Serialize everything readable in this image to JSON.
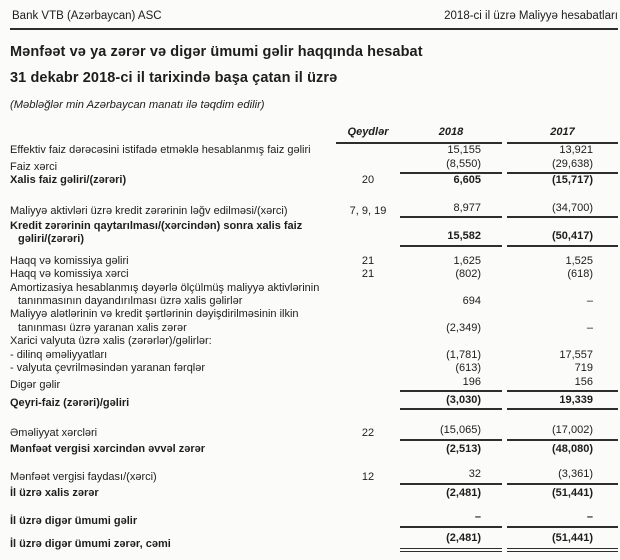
{
  "colors": {
    "ink": "#1d1d1d",
    "rule": "#2e2e2e",
    "paper": "#fbfbfa"
  },
  "header": {
    "company": "Bank VTB (Azərbaycan) ASC",
    "report": "2018-ci il üzrə Maliyyə hesabatları"
  },
  "title": {
    "line1": "Mənfəət və ya zərər və digər ümumi gəlir haqqında hesabat",
    "line2": "31 dekabr 2018-ci il tarixində başa çatan il üzrə",
    "units_note": "(Məbləğlər min Azərbaycan manatı ilə təqdim edilir)"
  },
  "table": {
    "columns": {
      "notes": "Qeydlər",
      "y2018": "2018",
      "y2017": "2017"
    },
    "rows": [
      {
        "label": [
          "Effektiv faiz dərəcəsini istifadə etməklə hesablanmış faiz gəliri"
        ],
        "note": "",
        "v2018": "15,155",
        "v2017": "13,921"
      },
      {
        "label": [
          "Faiz xərci"
        ],
        "note": "",
        "v2018": "(8,550)",
        "v2017": "(29,638)",
        "rule": "single"
      },
      {
        "label": [
          "Xalis faiz gəliri/(zərəri)"
        ],
        "note": "20",
        "v2018": "6,605",
        "v2017": "(15,717)",
        "bold": true
      },
      {
        "spacer": 14
      },
      {
        "label": [
          "Maliyyə aktivləri üzrə kredit zərərinin ləğv edilməsi/(xərci)"
        ],
        "note": "7, 9, 19",
        "v2018": "8,977",
        "v2017": "(34,700)",
        "rule": "single"
      },
      {
        "label": [
          "Kredit zərərinin qaytarılması/(xərcindən) sonra xalis faiz",
          "gəliri/(zərəri)"
        ],
        "note": "",
        "v2018": "15,582",
        "v2017": "(50,417)",
        "bold": true,
        "rule": "single",
        "mt": 2
      },
      {
        "spacer": 8
      },
      {
        "label": [
          "Haqq və komissiya gəliri"
        ],
        "note": "21",
        "v2018": "1,625",
        "v2017": "1,525"
      },
      {
        "label": [
          "Haqq və komissiya xərci"
        ],
        "note": "21",
        "v2018": "(802)",
        "v2017": "(618)"
      },
      {
        "label": [
          "Amortizasiya hesablanmış dəyərlə ölçülmüş maliyyə aktivlərinin",
          "tanınmasının dayandırılması üzrə xalis gəlirlər"
        ],
        "note": "",
        "v2018": "694",
        "v2017": "–"
      },
      {
        "label": [
          "Maliyyə alətlərinin və kredit şərtlərinin dəyişdirilməsinin ilkin",
          "tanınması üzrə yaranan xalis zərər"
        ],
        "note": "",
        "v2018": "(2,349)",
        "v2017": "–"
      },
      {
        "label": [
          "Xarici valyuta üzrə xalis (zərərlər)/gəlirlər:"
        ],
        "note": "",
        "v2018": "",
        "v2017": ""
      },
      {
        "label": [
          "- dilinq əməliyyatları"
        ],
        "note": "",
        "v2018": "(1,781)",
        "v2017": "17,557"
      },
      {
        "label": [
          "- valyuta çevrilməsindən yaranan fərqlər"
        ],
        "note": "",
        "v2018": "(613)",
        "v2017": "719"
      },
      {
        "label": [
          "Digər gəlir"
        ],
        "note": "",
        "v2018": "196",
        "v2017": "156",
        "rule": "single"
      },
      {
        "label": [
          "Qeyri-faiz (zərəri)/gəliri"
        ],
        "note": "",
        "v2018": "(3,030)",
        "v2017": "19,339",
        "bold": true,
        "rule": "single",
        "mt": 2
      },
      {
        "spacer": 14
      },
      {
        "label": [
          "Əməliyyat xərcləri"
        ],
        "note": "22",
        "v2018": "(15,065)",
        "v2017": "(17,002)",
        "rule": "single"
      },
      {
        "label": [
          "Mənfəət vergisi xərcindən əvvəl zərər"
        ],
        "note": "",
        "v2018": "(2,513)",
        "v2017": "(48,080)",
        "bold": true,
        "mt": 2
      },
      {
        "spacer": 12
      },
      {
        "label": [
          "Mənfəət vergisi faydası/(xərci)"
        ],
        "note": "12",
        "v2018": "32",
        "v2017": "(3,361)",
        "rule": "single"
      },
      {
        "label": [
          "İl üzrə xalis zərər"
        ],
        "note": "",
        "v2018": "(2,481)",
        "v2017": "(51,441)",
        "bold": true,
        "mt": 2
      },
      {
        "spacer": 11
      },
      {
        "label": [
          "İl üzrə digər ümumi gəlir"
        ],
        "note": "",
        "v2018": "–",
        "v2017": "–",
        "bold": true,
        "rule": "thick"
      },
      {
        "label": [
          "İl üzrə digər ümumi zərər, cəmi"
        ],
        "note": "",
        "v2018": "(2,481)",
        "v2017": "(51,441)",
        "bold": true,
        "rule": "double",
        "mt": 4
      }
    ]
  }
}
